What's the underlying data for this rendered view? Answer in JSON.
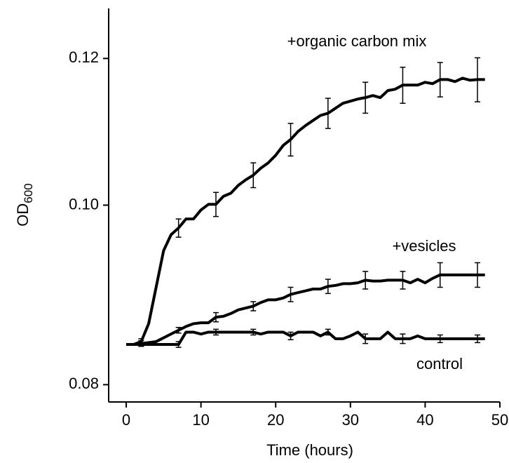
{
  "chart_data": {
    "type": "line",
    "x_label": "Time (hours)",
    "y_label": {
      "text": "OD",
      "subscript": "600"
    },
    "log_y": true,
    "xlim": [
      -2.35,
      50
    ],
    "xticks": [
      0,
      10,
      20,
      30,
      40,
      50
    ],
    "ylim": [
      0.0783,
      0.1277
    ],
    "yticks": [
      0.08,
      {
        "value": 0.1,
        "label": "0.10"
      },
      0.12
    ],
    "x": [
      0,
      1,
      2,
      3,
      4,
      5,
      6,
      7,
      8,
      9,
      10,
      11,
      12,
      13,
      14,
      15,
      16,
      17,
      18,
      19,
      20,
      21,
      22,
      23,
      24,
      25,
      26,
      27,
      28,
      29,
      30,
      31,
      32,
      33,
      34,
      35,
      36,
      37,
      38,
      39,
      40,
      41,
      42,
      43,
      44,
      45,
      46,
      47,
      48
    ],
    "series": [
      {
        "name": "+organic carbon mix",
        "color": "#000000",
        "values": [
          0.0841,
          0.0841,
          0.0844,
          0.0863,
          0.0903,
          0.0945,
          0.0964,
          0.0972,
          0.0983,
          0.0983,
          0.0994,
          0.1001,
          0.1001,
          0.1011,
          0.1015,
          0.1025,
          0.1032,
          0.1038,
          0.1047,
          0.1054,
          0.1064,
          0.1077,
          0.1085,
          0.1096,
          0.1104,
          0.1111,
          0.1118,
          0.1121,
          0.1128,
          0.1135,
          0.1138,
          0.1141,
          0.1143,
          0.1146,
          0.1143,
          0.1153,
          0.1155,
          0.1161,
          0.1161,
          0.1161,
          0.1165,
          0.1163,
          0.1169,
          0.1169,
          0.1166,
          0.1171,
          0.1168,
          0.1169,
          0.1169
        ],
        "errors": [
          null,
          null,
          0.0003,
          null,
          null,
          null,
          null,
          0.0011,
          null,
          null,
          null,
          null,
          0.0015,
          null,
          null,
          null,
          null,
          0.0016,
          null,
          null,
          null,
          null,
          0.0022,
          null,
          null,
          null,
          null,
          0.0021,
          null,
          null,
          null,
          null,
          0.0022,
          null,
          null,
          null,
          null,
          0.0026,
          null,
          null,
          null,
          null,
          0.0025,
          null,
          null,
          null,
          null,
          0.0032,
          null
        ]
      },
      {
        "name": "+vesicles",
        "color": "#000000",
        "values": [
          0.0841,
          0.0841,
          0.0842,
          0.0843,
          0.0844,
          0.0848,
          0.0852,
          0.0856,
          0.086,
          0.0863,
          0.0864,
          0.0864,
          0.087,
          0.0871,
          0.0874,
          0.0878,
          0.088,
          0.0882,
          0.0886,
          0.0889,
          0.0889,
          0.0891,
          0.0895,
          0.0897,
          0.0899,
          0.0901,
          0.0901,
          0.0904,
          0.0905,
          0.0907,
          0.0907,
          0.0908,
          0.0911,
          0.091,
          0.091,
          0.0911,
          0.0911,
          0.0911,
          0.0908,
          0.0912,
          0.0908,
          0.0913,
          0.0917,
          0.0917,
          0.0917,
          0.0917,
          0.0917,
          0.0917,
          0.0917
        ],
        "errors": [
          null,
          null,
          0.0003,
          null,
          null,
          null,
          null,
          0.0003,
          null,
          null,
          null,
          null,
          0.0005,
          null,
          null,
          null,
          null,
          0.0005,
          null,
          null,
          null,
          null,
          0.0008,
          null,
          null,
          null,
          null,
          0.0008,
          null,
          null,
          null,
          null,
          0.001,
          null,
          null,
          null,
          null,
          0.001,
          null,
          null,
          null,
          null,
          0.0014,
          null,
          null,
          null,
          null,
          0.0014,
          null
        ]
      },
      {
        "name": "control",
        "color": "#000000",
        "values": [
          0.0841,
          0.0841,
          0.0841,
          0.0841,
          0.0841,
          0.0841,
          0.0841,
          0.0841,
          0.0854,
          0.0854,
          0.0852,
          0.0854,
          0.0854,
          0.0854,
          0.0854,
          0.0854,
          0.0854,
          0.0854,
          0.0852,
          0.0854,
          0.0854,
          0.0854,
          0.085,
          0.0854,
          0.0854,
          0.0854,
          0.085,
          0.0854,
          0.0847,
          0.0847,
          0.085,
          0.0854,
          0.0847,
          0.0847,
          0.0847,
          0.0854,
          0.0847,
          0.0847,
          0.0847,
          0.085,
          0.0847,
          0.0847,
          0.0847,
          0.0847,
          0.0847,
          0.0847,
          0.0847,
          0.0847,
          0.0847
        ],
        "errors": [
          null,
          null,
          0.0002,
          null,
          null,
          null,
          null,
          0.0003,
          null,
          null,
          null,
          null,
          0.0003,
          null,
          null,
          null,
          null,
          0.0003,
          null,
          null,
          null,
          null,
          0.0004,
          null,
          null,
          null,
          null,
          0.0003,
          null,
          null,
          null,
          null,
          0.0005,
          null,
          null,
          null,
          null,
          0.0005,
          null,
          null,
          null,
          null,
          0.0004,
          null,
          null,
          null,
          null,
          0.0004,
          null
        ]
      }
    ]
  }
}
